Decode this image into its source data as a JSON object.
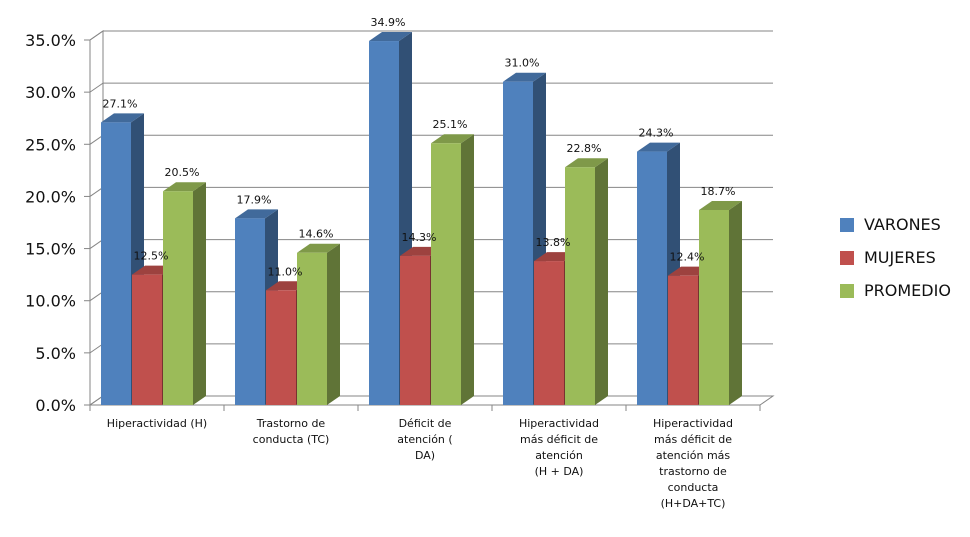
{
  "chart_data": {
    "type": "bar",
    "categories": [
      [
        "Hiperactividad (H)"
      ],
      [
        "Trastorno de",
        "conducta (TC)"
      ],
      [
        "Déficit de",
        "atención          (",
        "DA)"
      ],
      [
        "Hiperactividad",
        "más déficit de",
        "atención",
        "(H + DA)"
      ],
      [
        "Hiperactividad",
        "más déficit de",
        "atención más",
        "trastorno de",
        "conducta",
        "(H+DA+TC)"
      ]
    ],
    "series": [
      {
        "name": "VARONES",
        "color": "#4f81bd",
        "values": [
          27.1,
          17.9,
          34.9,
          31.0,
          24.3
        ],
        "labels": [
          "27.1%",
          "17.9%",
          "34.9%",
          "31.0%",
          "24.3%"
        ]
      },
      {
        "name": "MUJERES",
        "color": "#c0504d",
        "values": [
          12.5,
          11.0,
          14.3,
          13.8,
          12.4
        ],
        "labels": [
          "12.5%",
          "11.0%",
          "14.3%",
          "13.8%",
          "12.4%"
        ]
      },
      {
        "name": "PROMEDIO",
        "color": "#9bbb59",
        "values": [
          20.5,
          14.6,
          25.1,
          22.8,
          18.7
        ],
        "labels": [
          "20.5%",
          "14.6%",
          "25.1%",
          "22.8%",
          "18.7%"
        ]
      }
    ],
    "y_ticks": [
      "0.0%",
      "5.0%",
      "10.0%",
      "15.0%",
      "20.0%",
      "25.0%",
      "30.0%",
      "35.0%"
    ],
    "ylim": [
      0,
      35
    ],
    "grid": true,
    "legend_position": "right",
    "style": "3d-clustered-column"
  }
}
